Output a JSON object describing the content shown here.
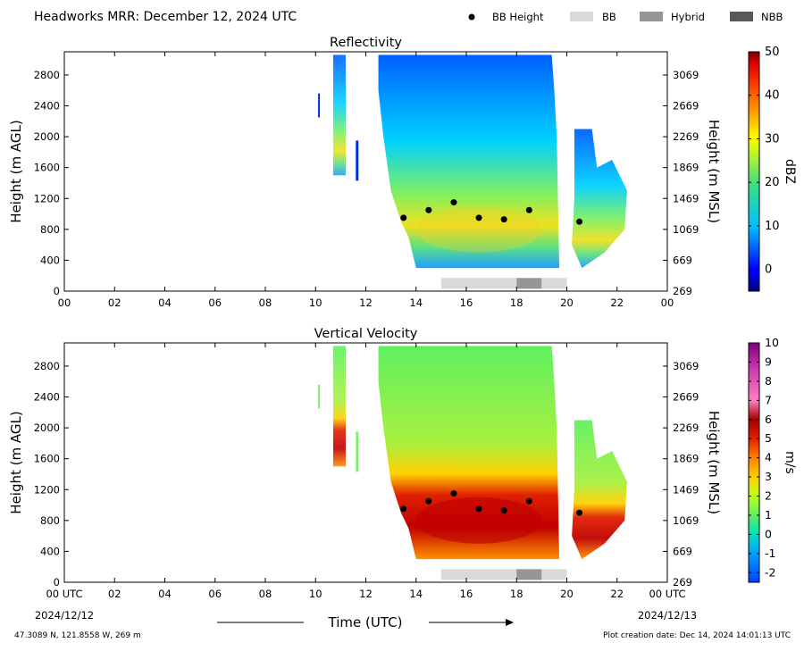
{
  "header": {
    "title": "Headworks MRR:  December 12, 2024 UTC",
    "legend": [
      {
        "label": "BB Height",
        "kind": "dot",
        "color": "#000000"
      },
      {
        "label": "BB",
        "kind": "box",
        "color": "#d9d9d9"
      },
      {
        "label": "Hybrid",
        "kind": "box",
        "color": "#969696"
      },
      {
        "label": "NBB",
        "kind": "box",
        "color": "#595959"
      }
    ]
  },
  "chart_data": [
    {
      "type": "heatmap",
      "title": "Reflectivity",
      "ylabel": "Height (m AGL)",
      "ylabel_right": "Height (m MSL)",
      "xlim": [
        0,
        24
      ],
      "ylim": [
        0,
        3100
      ],
      "x_ticks": [
        "00",
        "02",
        "04",
        "06",
        "08",
        "10",
        "12",
        "14",
        "16",
        "18",
        "20",
        "22",
        "00"
      ],
      "y_ticks": [
        0,
        400,
        800,
        1200,
        1600,
        2000,
        2400,
        2800
      ],
      "y_ticks_right": [
        "269",
        "669",
        "1069",
        "1469",
        "1869",
        "2269",
        "2669",
        "3069"
      ],
      "colorbar": {
        "label": "dBZ",
        "range": [
          -5,
          50
        ],
        "ticks": [
          "0",
          "10",
          "20",
          "30",
          "40",
          "50"
        ],
        "tick_values": [
          0,
          10,
          20,
          30,
          40,
          50
        ]
      },
      "bb_height_points": [
        {
          "x": 13.5,
          "y": 950
        },
        {
          "x": 14.5,
          "y": 1050
        },
        {
          "x": 15.5,
          "y": 1150
        },
        {
          "x": 16.5,
          "y": 950
        },
        {
          "x": 17.5,
          "y": 930
        },
        {
          "x": 18.5,
          "y": 1050
        },
        {
          "x": 20.5,
          "y": 900
        }
      ],
      "bb_type_bar": [
        {
          "start": 15,
          "end": 18,
          "type": "BB"
        },
        {
          "start": 18,
          "end": 19,
          "type": "Hybrid"
        },
        {
          "start": 19,
          "end": 20,
          "type": "BB"
        }
      ]
    },
    {
      "type": "heatmap",
      "title": "Vertical Velocity",
      "ylabel": "Height (m AGL)",
      "ylabel_right": "Height (m MSL)",
      "xlim": [
        0,
        24
      ],
      "ylim": [
        0,
        3100
      ],
      "x_ticks": [
        "00 UTC",
        "02",
        "04",
        "06",
        "08",
        "10",
        "12",
        "14",
        "16",
        "18",
        "20",
        "22",
        "00 UTC"
      ],
      "x_date_left": "2024/12/12",
      "x_date_right": "2024/12/13",
      "xlabel": "Time (UTC)",
      "y_ticks": [
        0,
        400,
        800,
        1200,
        1600,
        2000,
        2400,
        2800
      ],
      "y_ticks_right": [
        "269",
        "669",
        "1069",
        "1469",
        "1869",
        "2269",
        "2669",
        "3069"
      ],
      "colorbar": {
        "label": "m/s",
        "range": [
          -2.5,
          10
        ],
        "ticks": [
          "-2",
          "-1",
          "0",
          "1",
          "2",
          "3",
          "4",
          "5",
          "6",
          "7",
          "8",
          "9",
          "10"
        ],
        "tick_values": [
          -2,
          -1,
          0,
          1,
          2,
          3,
          4,
          5,
          6,
          7,
          8,
          9,
          10
        ]
      },
      "bb_height_points": [
        {
          "x": 13.5,
          "y": 950
        },
        {
          "x": 14.5,
          "y": 1050
        },
        {
          "x": 15.5,
          "y": 1150
        },
        {
          "x": 16.5,
          "y": 950
        },
        {
          "x": 17.5,
          "y": 930
        },
        {
          "x": 18.5,
          "y": 1050
        },
        {
          "x": 20.5,
          "y": 900
        }
      ],
      "bb_type_bar": [
        {
          "start": 15,
          "end": 18,
          "type": "BB"
        },
        {
          "start": 18,
          "end": 19,
          "type": "Hybrid"
        },
        {
          "start": 19,
          "end": 20,
          "type": "BB"
        }
      ]
    }
  ],
  "footer": {
    "location": "47.3089 N, 121.8558 W, 269 m",
    "creation_date": "Plot creation date: Dec 14, 2024 14:01:13 UTC"
  }
}
